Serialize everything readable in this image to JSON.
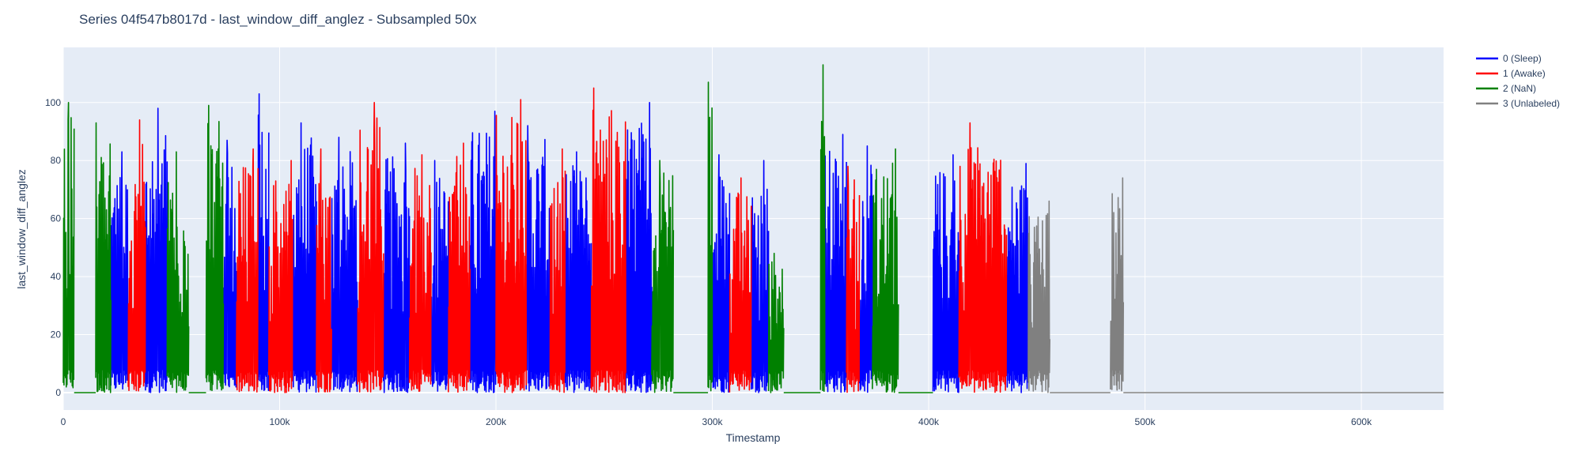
{
  "chart_data": {
    "type": "line",
    "title": "Series 04f547b8017d - last_window_diff_anglez - Subsampled 50x",
    "xlabel": "Timestamp",
    "ylabel": "last_window_diff_anglez",
    "xlim": [
      0,
      638000
    ],
    "ylim": [
      -6,
      119
    ],
    "x_ticks": [
      0,
      100000,
      200000,
      300000,
      400000,
      500000,
      600000
    ],
    "x_tick_labels": [
      "0",
      "100k",
      "200k",
      "300k",
      "400k",
      "500k",
      "600k"
    ],
    "y_ticks": [
      0,
      20,
      40,
      60,
      80,
      100
    ],
    "y_tick_labels": [
      "0",
      "20",
      "40",
      "60",
      "80",
      "100"
    ],
    "grid": true,
    "legend_position": "top-right, outside plot",
    "plot_background": "#e5ecf6",
    "series": [
      {
        "name": "0 (Sleep)",
        "color": "#0000ff",
        "segments": [
          {
            "x_start": 22000,
            "x_end": 30000,
            "y_low": 0,
            "y_high": 83
          },
          {
            "x_start": 38000,
            "x_end": 48000,
            "y_low": 0,
            "y_high": 98
          },
          {
            "x_start": 74000,
            "x_end": 80000,
            "y_low": 0,
            "y_high": 87
          },
          {
            "x_start": 90000,
            "x_end": 95000,
            "y_low": 0,
            "y_high": 103
          },
          {
            "x_start": 106000,
            "x_end": 117000,
            "y_low": 0,
            "y_high": 93
          },
          {
            "x_start": 124000,
            "x_end": 136000,
            "y_low": 0,
            "y_high": 88
          },
          {
            "x_start": 148000,
            "x_end": 160000,
            "y_low": 0,
            "y_high": 86
          },
          {
            "x_start": 170000,
            "x_end": 178000,
            "y_low": 0,
            "y_high": 80
          },
          {
            "x_start": 188000,
            "x_end": 200000,
            "y_low": 0,
            "y_high": 97
          },
          {
            "x_start": 214000,
            "x_end": 225000,
            "y_low": 0,
            "y_high": 92
          },
          {
            "x_start": 232000,
            "x_end": 244000,
            "y_low": 0,
            "y_high": 83
          },
          {
            "x_start": 260000,
            "x_end": 272000,
            "y_low": 0,
            "y_high": 100
          },
          {
            "x_start": 300000,
            "x_end": 308000,
            "y_low": 0,
            "y_high": 82
          },
          {
            "x_start": 318000,
            "x_end": 326000,
            "y_low": 0,
            "y_high": 80
          },
          {
            "x_start": 352000,
            "x_end": 362000,
            "y_low": 0,
            "y_high": 89
          },
          {
            "x_start": 368000,
            "x_end": 374000,
            "y_low": 0,
            "y_high": 85
          },
          {
            "x_start": 402000,
            "x_end": 414000,
            "y_low": 0,
            "y_high": 82
          },
          {
            "x_start": 436000,
            "x_end": 446000,
            "y_low": 0,
            "y_high": 79
          }
        ]
      },
      {
        "name": "1 (Awake)",
        "color": "#ff0000",
        "segments": [
          {
            "x_start": 30000,
            "x_end": 38000,
            "y_low": 0,
            "y_high": 94
          },
          {
            "x_start": 80000,
            "x_end": 90000,
            "y_low": 0,
            "y_high": 84
          },
          {
            "x_start": 95000,
            "x_end": 106000,
            "y_low": 0,
            "y_high": 80
          },
          {
            "x_start": 117000,
            "x_end": 124000,
            "y_low": 0,
            "y_high": 84
          },
          {
            "x_start": 136000,
            "x_end": 148000,
            "y_low": 0,
            "y_high": 100
          },
          {
            "x_start": 160000,
            "x_end": 170000,
            "y_low": 0,
            "y_high": 82
          },
          {
            "x_start": 178000,
            "x_end": 188000,
            "y_low": 0,
            "y_high": 86
          },
          {
            "x_start": 200000,
            "x_end": 214000,
            "y_low": 0,
            "y_high": 101
          },
          {
            "x_start": 225000,
            "x_end": 232000,
            "y_low": 0,
            "y_high": 84
          },
          {
            "x_start": 244000,
            "x_end": 260000,
            "y_low": 0,
            "y_high": 105
          },
          {
            "x_start": 308000,
            "x_end": 318000,
            "y_low": 0,
            "y_high": 74
          },
          {
            "x_start": 362000,
            "x_end": 368000,
            "y_low": 0,
            "y_high": 78
          },
          {
            "x_start": 414000,
            "x_end": 436000,
            "y_low": 0,
            "y_high": 93
          }
        ]
      },
      {
        "name": "2 (NaN)",
        "color": "#008000",
        "segments": [
          {
            "x_start": 0,
            "x_end": 5000,
            "y_low": 0,
            "y_high": 100
          },
          {
            "x_start": 5000,
            "x_end": 15000,
            "y_low": 0,
            "y_high": 0
          },
          {
            "x_start": 15000,
            "x_end": 22000,
            "y_low": 0,
            "y_high": 93
          },
          {
            "x_start": 48000,
            "x_end": 58000,
            "y_low": 0,
            "y_high": 83
          },
          {
            "x_start": 58000,
            "x_end": 66000,
            "y_low": 0,
            "y_high": 0
          },
          {
            "x_start": 66000,
            "x_end": 74000,
            "y_low": 0,
            "y_high": 99
          },
          {
            "x_start": 272000,
            "x_end": 282000,
            "y_low": 0,
            "y_high": 80
          },
          {
            "x_start": 282000,
            "x_end": 298000,
            "y_low": 0,
            "y_high": 0
          },
          {
            "x_start": 298000,
            "x_end": 300000,
            "y_low": 0,
            "y_high": 107
          },
          {
            "x_start": 326000,
            "x_end": 333000,
            "y_low": 0,
            "y_high": 48
          },
          {
            "x_start": 333000,
            "x_end": 350000,
            "y_low": 0,
            "y_high": 0
          },
          {
            "x_start": 350000,
            "x_end": 352000,
            "y_low": 0,
            "y_high": 113
          },
          {
            "x_start": 374000,
            "x_end": 386000,
            "y_low": 0,
            "y_high": 84
          },
          {
            "x_start": 386000,
            "x_end": 402000,
            "y_low": 0,
            "y_high": 0
          }
        ]
      },
      {
        "name": "3 (Unlabeled)",
        "color": "#808080",
        "segments": [
          {
            "x_start": 446000,
            "x_end": 456000,
            "y_low": 0,
            "y_high": 66
          },
          {
            "x_start": 456000,
            "x_end": 484000,
            "y_low": 0,
            "y_high": 0
          },
          {
            "x_start": 484000,
            "x_end": 490000,
            "y_low": 0,
            "y_high": 74
          },
          {
            "x_start": 490000,
            "x_end": 638000,
            "y_low": 0,
            "y_high": 0
          }
        ]
      }
    ]
  }
}
